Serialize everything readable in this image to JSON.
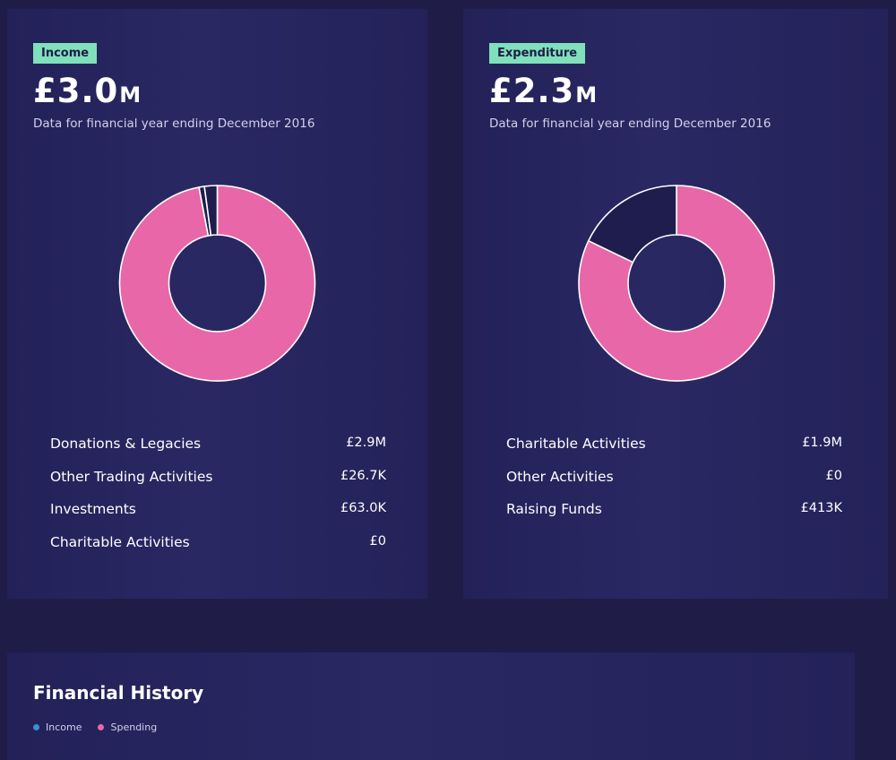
{
  "income": {
    "badge": "Income",
    "amount": "£3.0",
    "unit": "M",
    "subtitle": "Data for financial year ending December 2016"
  },
  "expenditure": {
    "badge": "Expenditure",
    "amount": "£2.3",
    "unit": "M",
    "subtitle": "Data for financial year ending December 2016"
  },
  "history": {
    "title": "Financial History",
    "legend": [
      {
        "label": "Income",
        "color": "#3b8fd6"
      },
      {
        "label": "Spending",
        "color": "#e867a9"
      }
    ]
  },
  "colors": {
    "pink": "#e867a9",
    "navy": "#1f1d4e",
    "badge": "#7fe0bb"
  },
  "chart_data": [
    {
      "type": "pie",
      "title": "Income",
      "categories": [
        "Donations & Legacies",
        "Other Trading Activities",
        "Investments",
        "Charitable Activities"
      ],
      "values": [
        2900000,
        26700,
        63000,
        0
      ],
      "display_values": [
        "£2.9M",
        "£26.7K",
        "£63.0K",
        "£0"
      ],
      "colors": [
        "#e867a9",
        "#1f1d4e",
        "#1f1d4e",
        "#1f1d4e"
      ]
    },
    {
      "type": "pie",
      "title": "Expenditure",
      "categories": [
        "Charitable Activities",
        "Other Activities",
        "Raising Funds"
      ],
      "values": [
        1900000,
        0,
        413000
      ],
      "display_values": [
        "£1.9M",
        "£0",
        "£413K"
      ],
      "colors": [
        "#e867a9",
        "#1f1d4e",
        "#1f1d4e"
      ]
    }
  ]
}
